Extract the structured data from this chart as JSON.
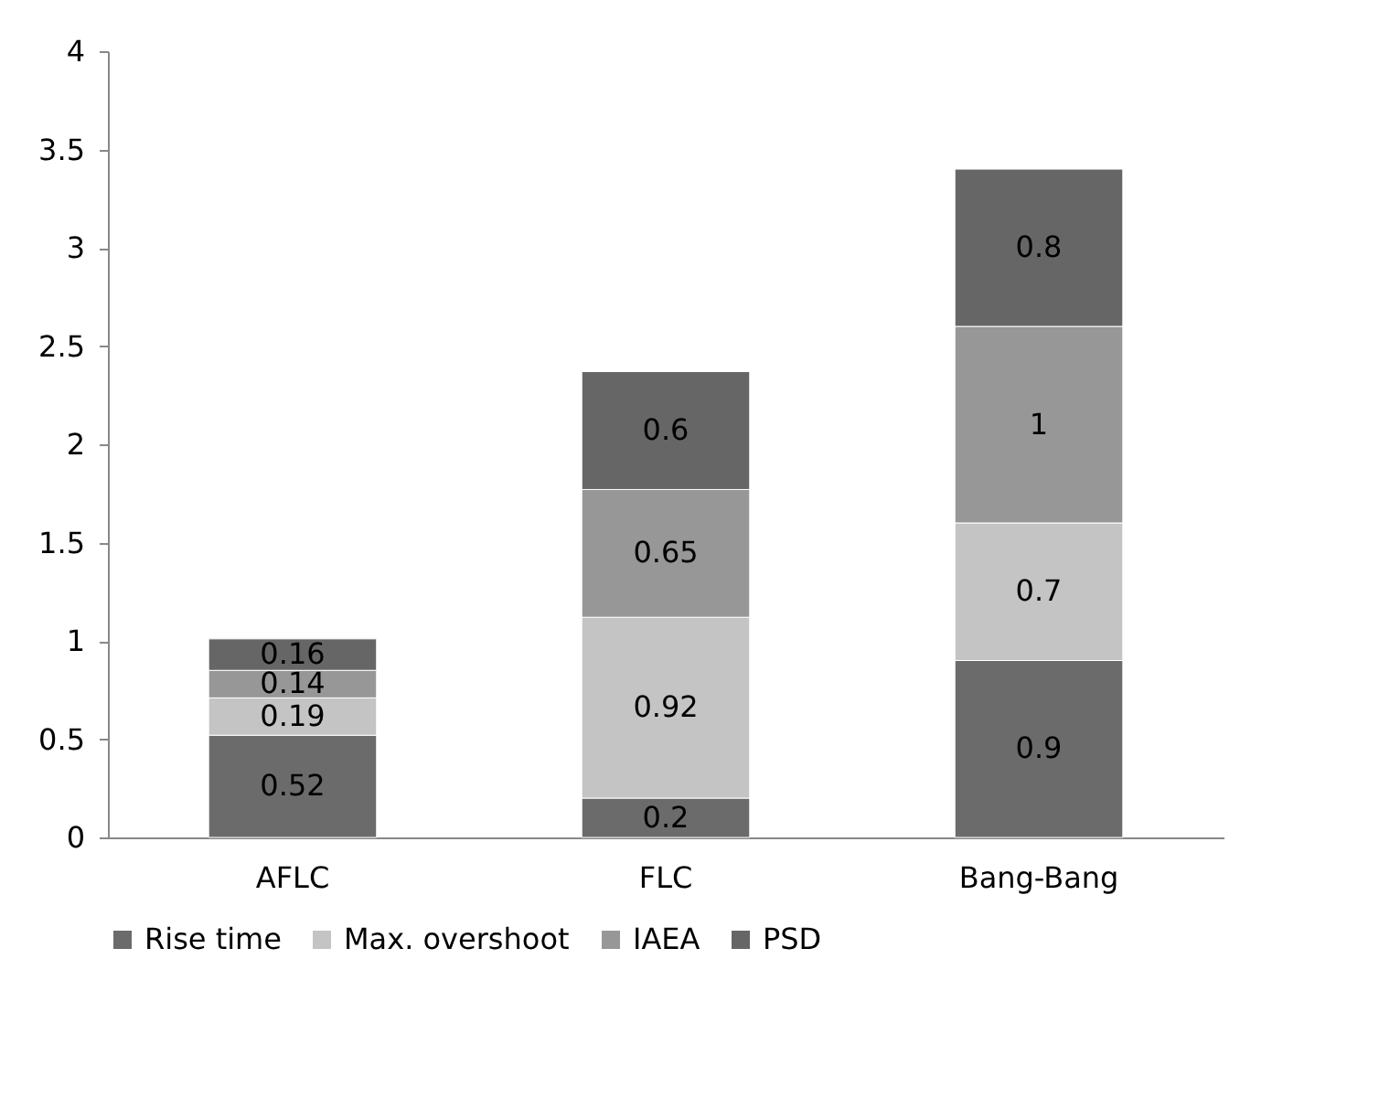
{
  "chart_data": {
    "type": "bar",
    "stacked": true,
    "categories": [
      "AFLC",
      "FLC",
      "Bang-Bang"
    ],
    "series": [
      {
        "name": "Rise time",
        "color": "#6b6b6b",
        "values": [
          0.52,
          0.2,
          0.9
        ]
      },
      {
        "name": "Max. overshoot",
        "color": "#c4c4c4",
        "values": [
          0.19,
          0.92,
          0.7
        ]
      },
      {
        "name": "IAEA",
        "color": "#979797",
        "values": [
          0.14,
          0.65,
          1
        ]
      },
      {
        "name": "PSD",
        "color": "#666666",
        "values": [
          0.16,
          0.6,
          0.8
        ]
      }
    ],
    "ylim": [
      0,
      4
    ],
    "yticks": [
      0,
      0.5,
      1,
      1.5,
      2,
      2.5,
      3,
      3.5,
      4
    ],
    "data_labels": true,
    "legend": "bottom",
    "grid": false
  }
}
